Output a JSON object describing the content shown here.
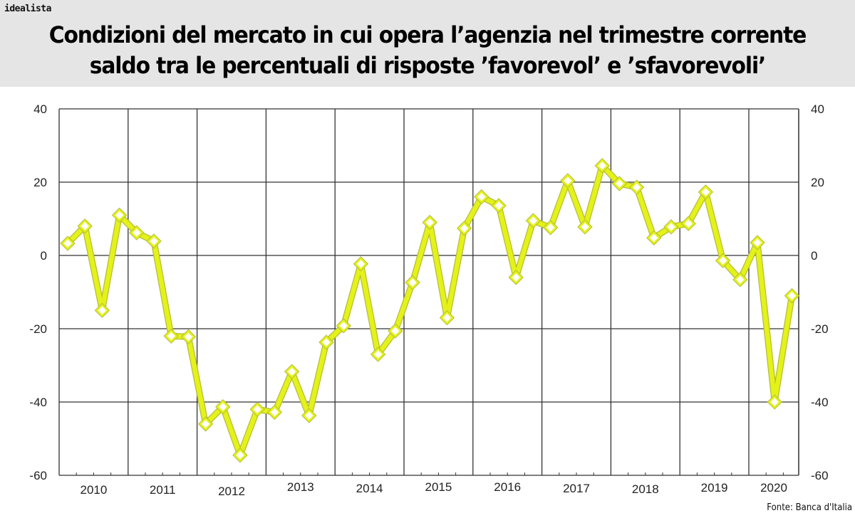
{
  "brand": "idealista",
  "title_line1": "Condizioni del mercato in cui opera l’agenzia nel trimestre corrente",
  "title_line2": "saldo tra le percentuali di risposte ’favorevol’ e ’sfavorevoli’",
  "source": "Fonte: Banca d'Italia",
  "colors": {
    "line": "#e4f218",
    "line_outline": "#b4bd3a",
    "marker_fill": "#ffffff",
    "grid": "#333333",
    "header_bg": "#e5e5e5"
  },
  "chart_data": {
    "type": "line",
    "title": "Condizioni del mercato in cui opera l’agenzia nel trimestre corrente — saldo tra le percentuali di risposte ’favorevol’ e ’sfavorevoli’",
    "xlabel": "",
    "ylabel": "",
    "ylim": [
      -60,
      40
    ],
    "yticks": [
      40,
      20,
      0,
      -20,
      -40,
      -60
    ],
    "y_axis_both_sides": true,
    "grid": true,
    "legend": null,
    "categories": [
      "2010",
      "2011",
      "2012",
      "2013",
      "2014",
      "2015",
      "2016",
      "2017",
      "2018",
      "2019",
      "2020"
    ],
    "x_frequency": "quarterly",
    "series": [
      {
        "name": "saldo",
        "marker": "diamond",
        "x": [
          "2010Q1",
          "2010Q2",
          "2010Q3",
          "2010Q4",
          "2011Q1",
          "2011Q2",
          "2011Q3",
          "2011Q4",
          "2012Q1",
          "2012Q2",
          "2012Q3",
          "2012Q4",
          "2013Q1",
          "2013Q2",
          "2013Q3",
          "2013Q4",
          "2014Q1",
          "2014Q2",
          "2014Q3",
          "2014Q4",
          "2015Q1",
          "2015Q2",
          "2015Q3",
          "2015Q4",
          "2016Q1",
          "2016Q2",
          "2016Q3",
          "2016Q4",
          "2017Q1",
          "2017Q2",
          "2017Q3",
          "2017Q4",
          "2018Q1",
          "2018Q2",
          "2018Q3",
          "2018Q4",
          "2019Q1",
          "2019Q2",
          "2019Q3",
          "2019Q4",
          "2020Q1",
          "2020Q2",
          "2020Q3"
        ],
        "values": [
          3.3,
          8.0,
          -15.0,
          11.0,
          6.2,
          3.9,
          -22.0,
          -22.2,
          -46.0,
          -41.3,
          -54.5,
          -42.0,
          -42.8,
          -31.7,
          -43.7,
          -23.7,
          -19.2,
          -2.3,
          -27.0,
          -20.6,
          -7.4,
          9.0,
          -17.0,
          7.4,
          16.0,
          13.6,
          -6.0,
          9.5,
          7.6,
          20.4,
          7.8,
          24.5,
          19.6,
          18.6,
          4.8,
          7.8,
          8.7,
          17.3,
          -1.4,
          -6.6,
          3.5,
          -40.0,
          -11.0
        ]
      }
    ]
  }
}
